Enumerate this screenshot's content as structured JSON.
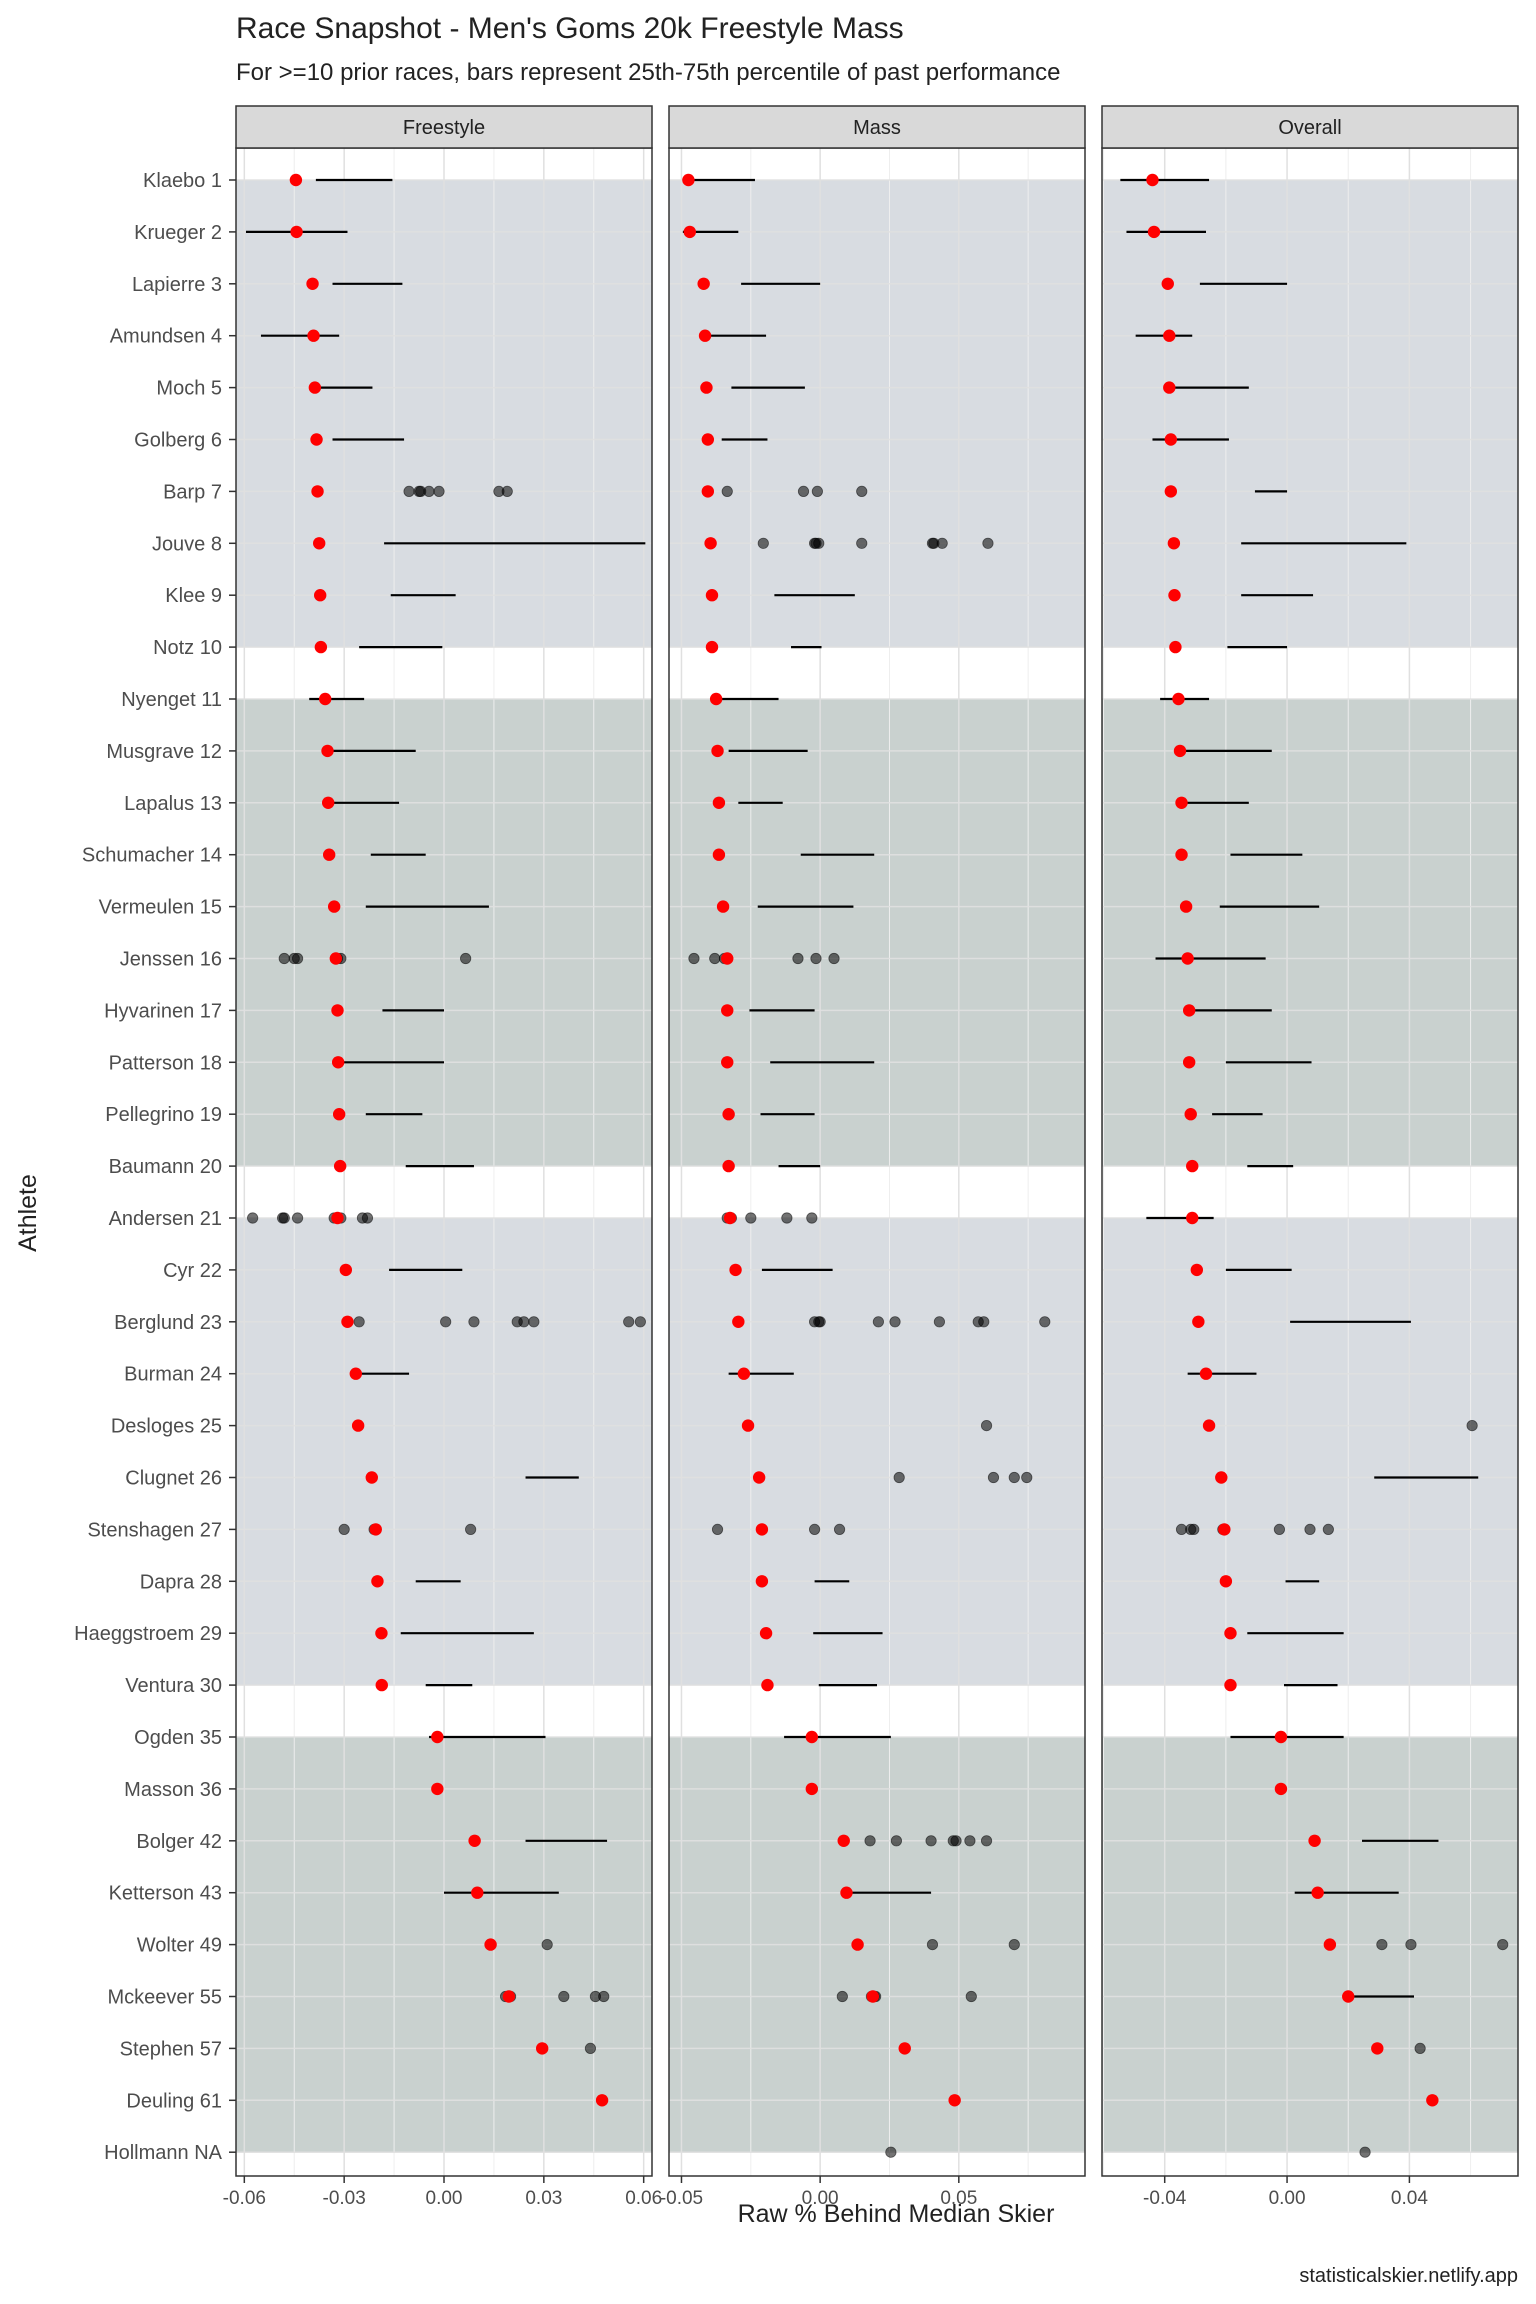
{
  "chart_data": {
    "type": "scatter",
    "title": "Race Snapshot -  Men's Goms 20k Freestyle Mass",
    "subtitle": "For >=10 prior races, bars represent 25th-75th percentile of past performance",
    "xlabel": "Raw % Behind Median Skier",
    "ylabel": "Athlete",
    "caption": "statisticalskier.netlify.app",
    "grid": true,
    "colors": {
      "current_point": "#ff0000",
      "past_point": "#000000",
      "band_a": "#d8dce1",
      "band_b": "#c9d1cf",
      "panel_bg": "#ffffff",
      "strip_bg": "#d9d9d9",
      "grid": "#e0e0e0"
    },
    "athletes": [
      "Klaebo 1",
      "Krueger 2",
      "Lapierre 3",
      "Amundsen 4",
      "Moch 5",
      "Golberg 6",
      "Barp 7",
      "Jouve 8",
      "Klee 9",
      "Notz 10",
      "Nyenget 11",
      "Musgrave 12",
      "Lapalus 13",
      "Schumacher 14",
      "Vermeulen 15",
      "Jenssen 16",
      "Hyvarinen 17",
      "Patterson 18",
      "Pellegrino 19",
      "Baumann 20",
      "Andersen 21",
      "Cyr 22",
      "Berglund 23",
      "Burman 24",
      "Desloges 25",
      "Clugnet 26",
      "Stenshagen 27",
      "Dapra 28",
      "Haeggstroem 29",
      "Ventura 30",
      "Ogden 35",
      "Masson 36",
      "Bolger 42",
      "Ketterson 43",
      "Wolter 49",
      "Mckeever 55",
      "Stephen 57",
      "Deuling 61",
      "Hollmann NA"
    ],
    "bands": [
      {
        "from": 0,
        "to": 9,
        "fill": "band_a"
      },
      {
        "from": 10,
        "to": 19,
        "fill": "band_b"
      },
      {
        "from": 20,
        "to": 29,
        "fill": "band_a"
      },
      {
        "from": 30,
        "to": 38,
        "fill": "band_b"
      }
    ],
    "panels": [
      {
        "strip": "Freestyle",
        "xlim": [
          -0.0625,
          0.0625
        ],
        "ticks": [
          -0.06,
          -0.03,
          0.0,
          0.03,
          0.06
        ],
        "tick_labels": [
          "-0.06",
          "-0.03",
          "0.00",
          "0.03",
          "0.06"
        ],
        "current": [
          -0.0445,
          -0.0443,
          -0.0395,
          -0.0392,
          -0.0388,
          -0.0383,
          -0.038,
          -0.0375,
          -0.0372,
          -0.037,
          -0.0357,
          -0.035,
          -0.0348,
          -0.0345,
          -0.033,
          -0.0325,
          -0.032,
          -0.0318,
          -0.0315,
          -0.0312,
          -0.032,
          -0.0295,
          -0.029,
          -0.0265,
          -0.0258,
          -0.0217,
          -0.0205,
          -0.02,
          -0.0188,
          -0.0187,
          -0.002,
          -0.002,
          0.0092,
          0.01,
          0.014,
          0.0195,
          0.0295,
          0.0475,
          null
        ],
        "iqr": [
          [
            -0.0385,
            -0.0155
          ],
          [
            -0.0595,
            -0.029
          ],
          [
            -0.0335,
            -0.0125
          ],
          [
            -0.055,
            -0.0315
          ],
          [
            -0.038,
            -0.0215
          ],
          [
            -0.0335,
            -0.012
          ],
          [
            null,
            null
          ],
          [
            -0.018,
            0.0605
          ],
          [
            -0.016,
            0.0035
          ],
          [
            -0.0255,
            -0.0005
          ],
          [
            -0.0405,
            -0.024
          ],
          [
            -0.034,
            -0.0085
          ],
          [
            -0.0335,
            -0.0135
          ],
          [
            -0.022,
            -0.0055
          ],
          [
            -0.0235,
            0.0135
          ],
          [
            null,
            null
          ],
          [
            -0.0185,
            -0.0
          ],
          [
            -0.0315,
            -0.0
          ],
          [
            -0.0235,
            -0.0065
          ],
          [
            -0.0115,
            0.009
          ],
          [
            null,
            null
          ],
          [
            -0.0165,
            0.0055
          ],
          [
            null,
            null
          ],
          [
            -0.0255,
            -0.0105
          ],
          [
            null,
            null
          ],
          [
            0.0245,
            0.0405
          ],
          [
            null,
            null
          ],
          [
            -0.0085,
            0.005
          ],
          [
            -0.013,
            0.027
          ],
          [
            -0.0055,
            0.0085
          ],
          [
            -0.0045,
            0.0305
          ],
          [
            null,
            null
          ],
          [
            0.0245,
            0.049
          ],
          [
            -0.0,
            0.0345
          ],
          [
            null,
            null
          ],
          [
            null,
            null
          ],
          [
            null,
            null
          ],
          [
            null,
            null
          ],
          [
            null,
            null
          ]
        ],
        "past": [
          [],
          [],
          [],
          [],
          [],
          [],
          [
            -0.0105,
            -0.0075,
            -0.007,
            -0.0045,
            -0.0015,
            0.0165,
            0.019
          ],
          [],
          [],
          [],
          [],
          [],
          [],
          [],
          [],
          [
            -0.048,
            -0.045,
            -0.044,
            -0.032,
            -0.031,
            0.0065
          ],
          [],
          [],
          [],
          [],
          [
            -0.0575,
            -0.0485,
            -0.048,
            -0.044,
            -0.033,
            -0.032,
            -0.031,
            -0.0245,
            -0.023
          ],
          [],
          [
            -0.029,
            -0.0255,
            0.0005,
            0.009,
            0.022,
            0.024,
            0.027,
            0.0555,
            0.059
          ],
          [],
          [],
          [],
          [
            -0.03,
            -0.021,
            0.008
          ],
          [],
          [],
          [],
          [],
          [],
          [],
          [],
          [
            0.031
          ],
          [
            0.0185,
            0.02,
            0.036,
            0.0455,
            0.048
          ],
          [
            0.044
          ],
          [],
          []
        ]
      },
      {
        "strip": "Mass",
        "xlim": [
          -0.0545,
          0.0955
        ],
        "ticks": [
          -0.05,
          0.0,
          0.05
        ],
        "tick_labels": [
          "-0.05",
          "0.00",
          "0.05"
        ],
        "current": [
          -0.0475,
          -0.047,
          -0.042,
          -0.0415,
          -0.041,
          -0.0405,
          -0.0405,
          -0.0395,
          -0.039,
          -0.039,
          -0.0375,
          -0.037,
          -0.0365,
          -0.0365,
          -0.035,
          -0.0335,
          -0.0335,
          -0.0335,
          -0.033,
          -0.033,
          -0.0325,
          -0.0305,
          -0.0295,
          -0.0275,
          -0.026,
          -0.022,
          -0.021,
          -0.021,
          -0.0195,
          -0.019,
          -0.003,
          -0.003,
          0.0085,
          0.0095,
          0.0135,
          0.019,
          0.0305,
          0.0485,
          null
        ],
        "iqr": [
          [
            -0.047,
            -0.0235
          ],
          [
            -0.0495,
            -0.0295
          ],
          [
            -0.0285,
            -0.0
          ],
          [
            -0.041,
            -0.0195
          ],
          [
            -0.032,
            -0.0055
          ],
          [
            -0.0355,
            -0.019
          ],
          [
            null,
            null
          ],
          [
            null,
            null
          ],
          [
            -0.0165,
            0.0125
          ],
          [
            -0.0105,
            0.0005
          ],
          [
            -0.039,
            -0.015
          ],
          [
            -0.033,
            -0.0045
          ],
          [
            -0.0295,
            -0.0135
          ],
          [
            -0.007,
            0.0195
          ],
          [
            -0.0225,
            0.012
          ],
          [
            null,
            null
          ],
          [
            -0.0255,
            -0.002
          ],
          [
            -0.018,
            0.0195
          ],
          [
            -0.0215,
            -0.002
          ],
          [
            -0.015,
            -0.0
          ],
          [
            null,
            null
          ],
          [
            -0.021,
            0.0045
          ],
          [
            null,
            null
          ],
          [
            -0.033,
            -0.0095
          ],
          [
            null,
            null
          ],
          [
            null,
            null
          ],
          [
            null,
            null
          ],
          [
            -0.002,
            0.0105
          ],
          [
            -0.0025,
            0.0225
          ],
          [
            -0.0005,
            0.0205
          ],
          [
            -0.013,
            0.0255
          ],
          [
            null,
            null
          ],
          [
            null,
            null
          ],
          [
            0.01,
            0.04
          ],
          [
            null,
            null
          ],
          [
            null,
            null
          ],
          [
            null,
            null
          ],
          [
            null,
            null
          ],
          [
            null,
            null
          ]
        ],
        "past": [
          [],
          [],
          [],
          [],
          [],
          [],
          [
            -0.0335,
            -0.006,
            -0.001,
            0.015
          ],
          [
            -0.0205,
            -0.002,
            -0.0015,
            -0.0005,
            0.015,
            0.0405,
            0.041,
            0.044,
            0.0605
          ],
          [],
          [],
          [],
          [],
          [],
          [],
          [],
          [
            -0.0455,
            -0.038,
            -0.0345,
            -0.0335,
            -0.008,
            -0.0015,
            0.005
          ],
          [],
          [],
          [],
          [],
          [
            -0.0335,
            -0.032,
            -0.025,
            -0.012,
            -0.003
          ],
          [],
          [
            -0.002,
            -0.0005,
            0.0,
            0.021,
            0.027,
            0.043,
            0.057,
            0.059,
            0.081
          ],
          [],
          [
            0.06
          ],
          [
            0.0285,
            0.0625,
            0.07,
            0.0745
          ],
          [
            -0.037,
            -0.002,
            0.007
          ],
          [],
          [],
          [],
          [],
          [],
          [
            0.018,
            0.0275,
            0.04,
            0.048,
            0.049,
            0.054,
            0.06
          ],
          [],
          [
            0.0405,
            0.07
          ],
          [
            0.008,
            0.0185,
            0.02,
            0.0195,
            0.0545
          ],
          [],
          [],
          [
            0.0255
          ]
        ]
      },
      {
        "strip": "Overall",
        "xlim": [
          -0.0605,
          0.0755
        ],
        "ticks": [
          -0.04,
          0.0,
          0.04
        ],
        "tick_labels": [
          "-0.04",
          "0.00",
          "0.04"
        ],
        "current": [
          -0.044,
          -0.0435,
          -0.039,
          -0.0385,
          -0.0385,
          -0.038,
          -0.038,
          -0.037,
          -0.0368,
          -0.0365,
          -0.0355,
          -0.035,
          -0.0345,
          -0.0345,
          -0.033,
          -0.0325,
          -0.032,
          -0.032,
          -0.0315,
          -0.031,
          -0.031,
          -0.0295,
          -0.029,
          -0.0265,
          -0.0255,
          -0.0215,
          -0.0205,
          -0.02,
          -0.0185,
          -0.0185,
          -0.002,
          -0.002,
          0.009,
          0.01,
          0.014,
          0.02,
          0.0295,
          0.0475,
          null
        ],
        "iqr": [
          [
            -0.0545,
            -0.0255
          ],
          [
            -0.0525,
            -0.0265
          ],
          [
            -0.0285,
            -0.0
          ],
          [
            -0.0495,
            -0.031
          ],
          [
            -0.0385,
            -0.0125
          ],
          [
            -0.044,
            -0.019
          ],
          [
            -0.0105,
            -0.0
          ],
          [
            -0.015,
            0.039
          ],
          [
            -0.015,
            0.0085
          ],
          [
            -0.0195,
            -0.0
          ],
          [
            -0.0415,
            -0.0255
          ],
          [
            -0.034,
            -0.005
          ],
          [
            -0.0345,
            -0.0125
          ],
          [
            -0.0185,
            0.005
          ],
          [
            -0.022,
            0.0105
          ],
          [
            -0.043,
            -0.007
          ],
          [
            -0.031,
            -0.005
          ],
          [
            -0.02,
            0.008
          ],
          [
            -0.0245,
            -0.008
          ],
          [
            -0.013,
            0.002
          ],
          [
            -0.046,
            -0.024
          ],
          [
            -0.02,
            0.0015
          ],
          [
            0.001,
            0.0405
          ],
          [
            -0.0325,
            -0.01
          ],
          [
            null,
            null
          ],
          [
            0.0285,
            0.0625
          ],
          [
            null,
            null
          ],
          [
            -0.0005,
            0.0105
          ],
          [
            -0.013,
            0.0185
          ],
          [
            -0.001,
            0.0165
          ],
          [
            -0.0185,
            0.0185
          ],
          [
            null,
            null
          ],
          [
            0.0245,
            0.0495
          ],
          [
            0.0025,
            0.0365
          ],
          [
            null,
            null
          ],
          [
            0.02,
            0.0415
          ],
          [
            null,
            null
          ],
          [
            null,
            null
          ],
          [
            null,
            null
          ]
        ],
        "past": [
          [],
          [],
          [],
          [],
          [],
          [],
          [],
          [],
          [],
          [],
          [],
          [],
          [],
          [],
          [],
          [],
          [],
          [],
          [],
          [],
          [],
          [],
          [],
          [],
          [
            0.0605
          ],
          [],
          [
            -0.0345,
            -0.0315,
            -0.0305,
            -0.021,
            -0.0205,
            -0.0025,
            0.0075,
            0.0135
          ],
          [],
          [],
          [],
          [],
          [],
          [],
          [],
          [
            0.031,
            0.0405,
            0.0705
          ],
          [],
          [
            0.0435
          ],
          [],
          [
            0.0255
          ]
        ]
      }
    ]
  }
}
